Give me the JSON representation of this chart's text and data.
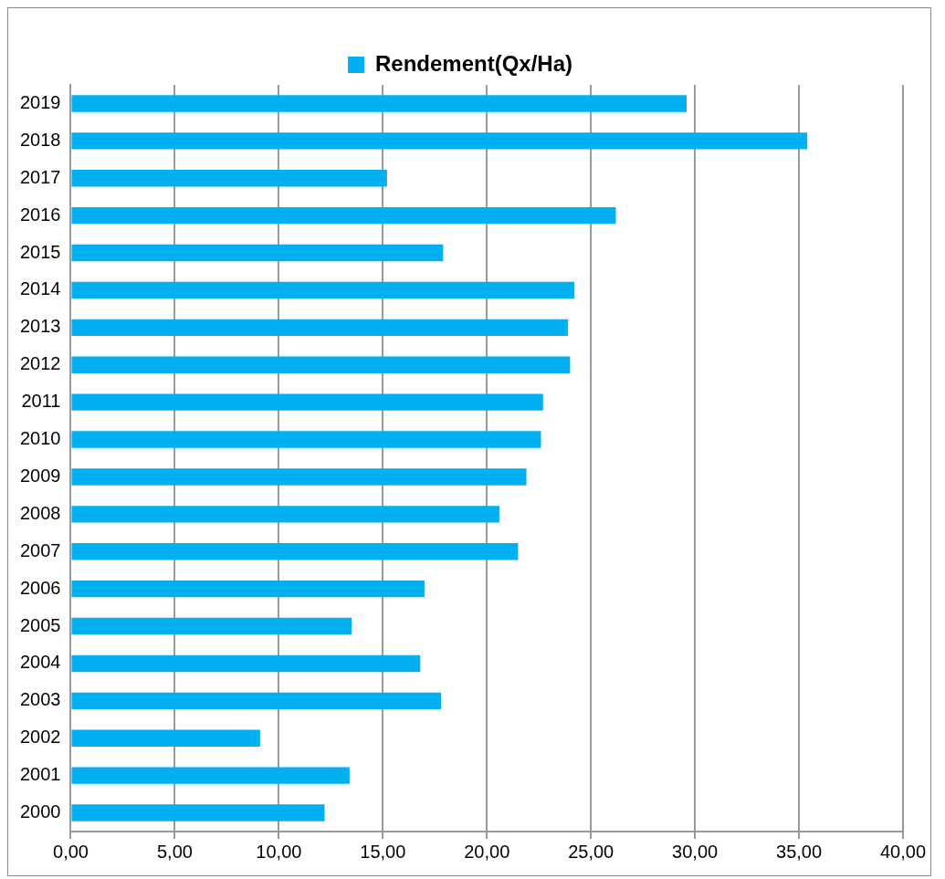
{
  "chart_data": {
    "type": "bar",
    "orientation": "horizontal",
    "categories": [
      "2019",
      "2018",
      "2017",
      "2016",
      "2015",
      "2014",
      "2013",
      "2012",
      "2011",
      "2010",
      "2009",
      "2008",
      "2007",
      "2006",
      "2005",
      "2004",
      "2003",
      "2002",
      "2001",
      "2000"
    ],
    "series": [
      {
        "name": "Rendement(Qx/Ha)",
        "color": "#00b0f0",
        "values": [
          29.6,
          35.4,
          15.2,
          26.2,
          17.9,
          24.2,
          23.9,
          24.0,
          22.7,
          22.6,
          21.9,
          20.6,
          21.5,
          17.0,
          13.5,
          16.8,
          17.8,
          9.1,
          13.4,
          12.2
        ]
      }
    ],
    "xlim": [
      0,
      40
    ],
    "xticks": [
      {
        "value": 0,
        "label": "0,00"
      },
      {
        "value": 5,
        "label": "5,00"
      },
      {
        "value": 10,
        "label": "10,00"
      },
      {
        "value": 15,
        "label": "15,00"
      },
      {
        "value": 20,
        "label": "20,00"
      },
      {
        "value": 25,
        "label": "25,00"
      },
      {
        "value": 30,
        "label": "30,00"
      },
      {
        "value": 35,
        "label": "35,00"
      },
      {
        "value": 40,
        "label": "40,00"
      }
    ],
    "grid": "x",
    "legend": "top"
  }
}
